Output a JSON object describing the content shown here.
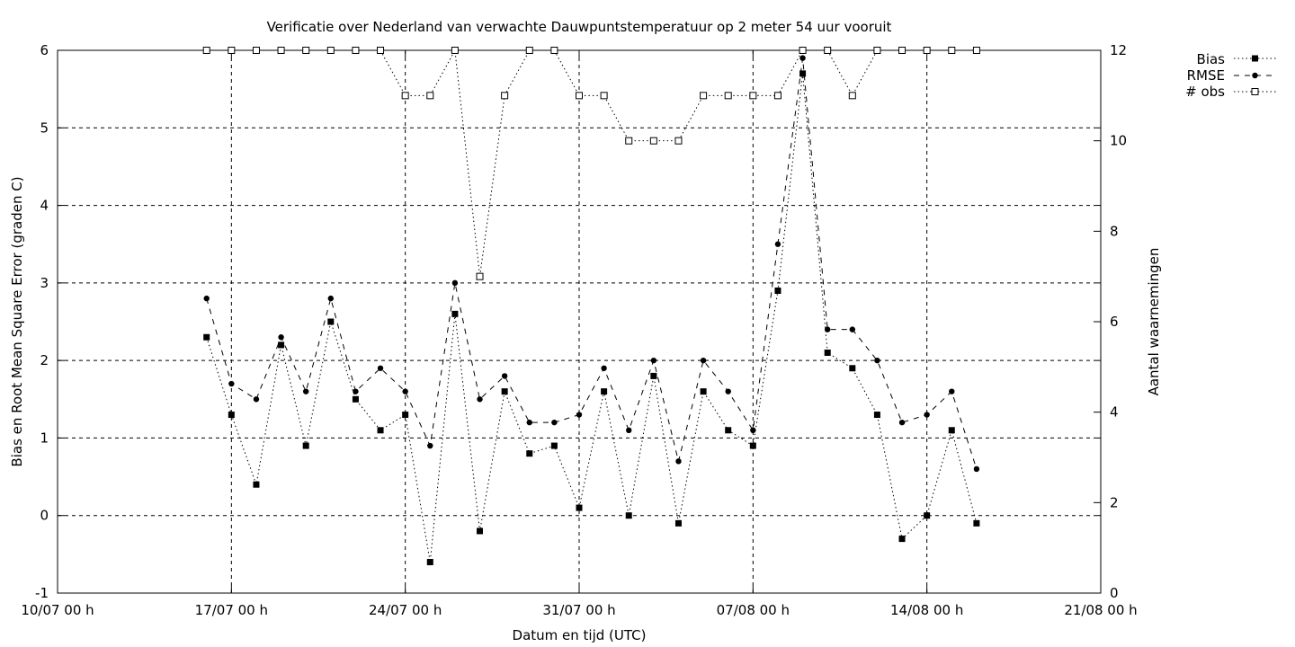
{
  "chart_data": {
    "type": "line",
    "title": "Verificatie over Nederland van verwachte Dauwpuntstemperatuur op 2 meter 54 uur vooruit",
    "xlabel": "Datum en tijd (UTC)",
    "ylabel": "Bias en Root Mean Square Error (graden C)",
    "y2label": "Aantal waarnemingen",
    "xlim": [
      "2025-07-10",
      "2025-08-21"
    ],
    "ylim": [
      -1,
      6
    ],
    "y2lim": [
      0,
      12
    ],
    "grid": true,
    "legend": "top-right outside",
    "x_ticks": [
      "10/07 00 h",
      "17/07 00 h",
      "24/07 00 h",
      "31/07 00 h",
      "07/08 00 h",
      "14/08 00 h",
      "21/08 00 h"
    ],
    "y_ticks": [
      "-1",
      "0",
      "1",
      "2",
      "3",
      "4",
      "5",
      "6"
    ],
    "y2_ticks": [
      "0",
      "2",
      "4",
      "6",
      "8",
      "10",
      "12"
    ],
    "x": [
      "2025-07-16",
      "2025-07-17",
      "2025-07-18",
      "2025-07-19",
      "2025-07-20",
      "2025-07-21",
      "2025-07-22",
      "2025-07-23",
      "2025-07-24",
      "2025-07-25",
      "2025-07-26",
      "2025-07-27",
      "2025-07-28",
      "2025-07-29",
      "2025-07-30",
      "2025-07-31",
      "2025-08-01",
      "2025-08-02",
      "2025-08-03",
      "2025-08-04",
      "2025-08-05",
      "2025-08-06",
      "2025-08-07",
      "2025-08-08",
      "2025-08-09",
      "2025-08-10",
      "2025-08-11",
      "2025-08-12",
      "2025-08-13",
      "2025-08-14",
      "2025-08-15",
      "2025-08-16"
    ],
    "series": [
      {
        "name": "Bias",
        "axis": "left",
        "style": "dotted",
        "marker": "filled-square",
        "values": [
          2.3,
          1.3,
          0.4,
          2.2,
          0.9,
          2.5,
          1.5,
          1.1,
          1.3,
          -0.6,
          2.6,
          -0.2,
          1.6,
          0.8,
          0.9,
          0.1,
          1.6,
          0.0,
          1.8,
          -0.1,
          1.6,
          1.1,
          0.9,
          2.9,
          5.7,
          2.1,
          1.9,
          1.3,
          -0.3,
          0.0,
          1.1,
          -0.1
        ]
      },
      {
        "name": "RMSE",
        "axis": "left",
        "style": "dashed",
        "marker": "filled-circle",
        "values": [
          2.8,
          1.7,
          1.5,
          2.3,
          1.6,
          2.8,
          1.6,
          1.9,
          1.6,
          0.9,
          3.0,
          1.5,
          1.8,
          1.2,
          1.2,
          1.3,
          1.9,
          1.1,
          2.0,
          0.7,
          2.0,
          1.6,
          1.1,
          3.5,
          5.9,
          2.4,
          2.4,
          2.0,
          1.2,
          1.3,
          1.6,
          0.6
        ]
      },
      {
        "name": "# obs",
        "axis": "right",
        "style": "dotted",
        "marker": "open-square",
        "values": [
          12,
          12,
          12,
          12,
          12,
          12,
          12,
          12,
          11,
          11,
          12,
          7,
          11,
          12,
          12,
          11,
          11,
          10,
          10,
          10,
          11,
          11,
          11,
          11,
          12,
          12,
          11,
          12,
          12,
          12,
          12,
          12
        ]
      }
    ]
  }
}
